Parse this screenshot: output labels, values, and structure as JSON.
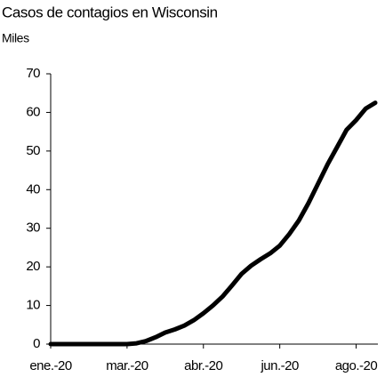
{
  "chart_data": {
    "type": "line",
    "title": "Casos de contagios en Wisconsin",
    "subtitle": "Miles",
    "categories": [
      "ene.-20",
      null,
      null,
      null,
      null,
      null,
      null,
      null,
      "mar.-20",
      null,
      null,
      null,
      null,
      null,
      null,
      null,
      "abr.-20",
      null,
      null,
      null,
      null,
      null,
      null,
      null,
      "jun.-20",
      null,
      null,
      null,
      null,
      null,
      null,
      null,
      "ago.-20",
      null,
      null
    ],
    "values": [
      0,
      0,
      0,
      0,
      0,
      0,
      0,
      0,
      0,
      0.2,
      0.8,
      1.8,
      3,
      3.8,
      4.8,
      6.2,
      8,
      10,
      12.3,
      15.2,
      18.2,
      20.3,
      22,
      23.5,
      25.5,
      28.5,
      32,
      36.5,
      41.5,
      46.5,
      51,
      55.5,
      58,
      61,
      62.5
    ],
    "color": "#000000",
    "ylim": [
      0,
      70
    ],
    "yticks": [
      0,
      10,
      20,
      30,
      40,
      50,
      60,
      70
    ]
  }
}
